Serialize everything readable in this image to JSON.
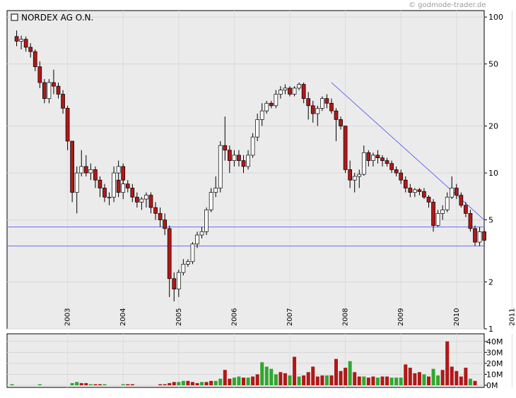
{
  "credit": "© godmode-trader.de",
  "chart_data": [
    {
      "type": "candlestick",
      "title": "NORDEX AG O.N.",
      "yscale": "log",
      "ylim": [
        1,
        110
      ],
      "yticks": [
        100,
        50,
        20,
        10,
        5,
        2,
        1
      ],
      "xrange": [
        "2002-02",
        "2011-12"
      ],
      "xticks": [
        "2003",
        "2004",
        "2005",
        "2006",
        "2007",
        "2008",
        "2009",
        "2010",
        "2011"
      ],
      "horizontal_lines": [
        4.5,
        3.4
      ],
      "trendline": {
        "from": [
          "2007-11",
          38
        ],
        "to": [
          "2011-12",
          5.0
        ]
      },
      "candles": [
        [
          "2002-03",
          75,
          82,
          65,
          70
        ],
        [
          "2002-04",
          70,
          76,
          62,
          72
        ],
        [
          "2002-05",
          72,
          75,
          60,
          64
        ],
        [
          "2002-06",
          64,
          68,
          55,
          60
        ],
        [
          "2002-07",
          60,
          62,
          45,
          48
        ],
        [
          "2002-08",
          48,
          52,
          35,
          38
        ],
        [
          "2002-09",
          38,
          40,
          28,
          30
        ],
        [
          "2002-10",
          30,
          40,
          28,
          38
        ],
        [
          "2002-11",
          38,
          46,
          32,
          36
        ],
        [
          "2002-12",
          36,
          38,
          30,
          32
        ],
        [
          "2003-01",
          32,
          34,
          24,
          26
        ],
        [
          "2003-02",
          26,
          27,
          14,
          16
        ],
        [
          "2003-03",
          16,
          16,
          6.5,
          7.5
        ],
        [
          "2003-04",
          7.5,
          11,
          5.5,
          10
        ],
        [
          "2003-05",
          10,
          14,
          9.5,
          11
        ],
        [
          "2003-06",
          11,
          13,
          9.5,
          10
        ],
        [
          "2003-07",
          10,
          11.5,
          9,
          10.5
        ],
        [
          "2003-08",
          10.5,
          11,
          8,
          9
        ],
        [
          "2003-09",
          9,
          9.5,
          7,
          8
        ],
        [
          "2003-10",
          8,
          8.5,
          6.5,
          7
        ],
        [
          "2003-11",
          7,
          7.5,
          6.2,
          7
        ],
        [
          "2003-12",
          7,
          11,
          6.5,
          10
        ],
        [
          "2003-13",
          10,
          12,
          9.5,
          11
        ],
        [
          "2003-14",
          11,
          11.5,
          8,
          9
        ],
        [
          "2004-01",
          9,
          9.5,
          7,
          7.5
        ],
        [
          "2004-02",
          7.5,
          9,
          6.8,
          8.5
        ],
        [
          "2004-03",
          8.5,
          9,
          7.5,
          8
        ],
        [
          "2004-04",
          8,
          8.5,
          6.5,
          7
        ],
        [
          "2004-05",
          7,
          7.5,
          6,
          6.5
        ],
        [
          "2004-06",
          6.5,
          7,
          5.8,
          6.8
        ],
        [
          "2004-07",
          6.8,
          7.5,
          6,
          7.2
        ],
        [
          "2004-08",
          7.2,
          7.5,
          5.5,
          6
        ],
        [
          "2004-09",
          6,
          6.5,
          5,
          5.5
        ],
        [
          "2004-10",
          5.5,
          6,
          4.5,
          5
        ],
        [
          "2004-11",
          5,
          5.5,
          4,
          4.4
        ],
        [
          "2004-12",
          4.4,
          4.6,
          1.6,
          2.1
        ],
        [
          "2005-01",
          2.1,
          2.3,
          1.5,
          1.8
        ],
        [
          "2005-02",
          1.8,
          2.4,
          1.6,
          2.3
        ],
        [
          "2005-03",
          2.3,
          2.8,
          2.2,
          2.6
        ],
        [
          "2005-04",
          2.6,
          2.8,
          2.5,
          2.7
        ],
        [
          "2005-05",
          2.7,
          3.6,
          2.6,
          3.5
        ],
        [
          "2005-06",
          3.5,
          4.2,
          3.3,
          4.0
        ],
        [
          "2005-07",
          4.0,
          4.5,
          3.8,
          4.2
        ],
        [
          "2005-08",
          4.2,
          6,
          4.0,
          5.8
        ],
        [
          "2005-09",
          5.8,
          8,
          5.6,
          7.5
        ],
        [
          "2005-10",
          7.5,
          9.5,
          7,
          8
        ],
        [
          "2005-11",
          8,
          16,
          7.5,
          15
        ],
        [
          "2005-12",
          15,
          23,
          12,
          14
        ],
        [
          "2006-01",
          14,
          15,
          10,
          12
        ],
        [
          "2006-02",
          12,
          14,
          11,
          13
        ],
        [
          "2006-03",
          13,
          14,
          11,
          12
        ],
        [
          "2006-04",
          12,
          13,
          10,
          11
        ],
        [
          "2006-05",
          11,
          14,
          10.5,
          13
        ],
        [
          "2006-06",
          13,
          18,
          12.5,
          17
        ],
        [
          "2006-07",
          17,
          24,
          16,
          22
        ],
        [
          "2006-08",
          22,
          28,
          20,
          25
        ],
        [
          "2006-09",
          25,
          29,
          24,
          28
        ],
        [
          "2006-10",
          28,
          29,
          26,
          27
        ],
        [
          "2006-11",
          27,
          34,
          26,
          32
        ],
        [
          "2006-12",
          32,
          36,
          30,
          34
        ],
        [
          "2007-01",
          34,
          37,
          32,
          35
        ],
        [
          "2007-02",
          35,
          36,
          31,
          32
        ],
        [
          "2007-03",
          32,
          36,
          31,
          35
        ],
        [
          "2007-04",
          35,
          38,
          34,
          37
        ],
        [
          "2007-05",
          37,
          38,
          28,
          30
        ],
        [
          "2007-06",
          30,
          33,
          22,
          27
        ],
        [
          "2007-07",
          27,
          29,
          21,
          24
        ],
        [
          "2007-08",
          24,
          27,
          20,
          26
        ],
        [
          "2007-09",
          26,
          31,
          25,
          30
        ],
        [
          "2007-10",
          30,
          32,
          26,
          28
        ],
        [
          "2007-11",
          28,
          30,
          24,
          25
        ],
        [
          "2007-12",
          25,
          26,
          16,
          22
        ],
        [
          "2008-01",
          22,
          23,
          19,
          20
        ],
        [
          "2008-02",
          20,
          20,
          10,
          10.5
        ],
        [
          "2008-03",
          10.5,
          12,
          8,
          9
        ],
        [
          "2008-04",
          9,
          10,
          7.5,
          9.5
        ],
        [
          "2008-05",
          9.5,
          10.5,
          8,
          9.8
        ],
        [
          "2008-06",
          9.8,
          15,
          9.6,
          13.5
        ],
        [
          "2008-07",
          13.5,
          14,
          11,
          12
        ],
        [
          "2008-08",
          12,
          13.5,
          11,
          13
        ],
        [
          "2008-09",
          13,
          14,
          11.5,
          12.5
        ],
        [
          "2008-10",
          12.5,
          13,
          11,
          12
        ],
        [
          "2008-11",
          12,
          12.5,
          11,
          11.5
        ],
        [
          "2008-12",
          11.5,
          12,
          10,
          10.5
        ],
        [
          "2009-01",
          10.5,
          11,
          9.5,
          10
        ],
        [
          "2009-02",
          10,
          10.5,
          8.5,
          9
        ],
        [
          "2009-03",
          9,
          9.5,
          7.5,
          8
        ],
        [
          "2009-04",
          8,
          8.5,
          7,
          7.5
        ],
        [
          "2009-05",
          7.5,
          8,
          7,
          7.8
        ],
        [
          "2009-06",
          7.8,
          8,
          7.2,
          7.6
        ],
        [
          "2009-07",
          7.6,
          8,
          6.8,
          7
        ],
        [
          "2009-08",
          7,
          7.2,
          6,
          6.5
        ],
        [
          "2009-09",
          6.5,
          6.8,
          4.2,
          4.6
        ],
        [
          "2009-10",
          4.6,
          5.8,
          4.5,
          5.5
        ],
        [
          "2009-11",
          5.5,
          6.2,
          5,
          5.8
        ],
        [
          "2009-12",
          5.8,
          7.5,
          5.6,
          7
        ],
        [
          "2010-01",
          7,
          9.5,
          6.8,
          8
        ],
        [
          "2010-02",
          8,
          8.5,
          6.8,
          7.2
        ],
        [
          "2010-03",
          7.2,
          7.5,
          6,
          6.2
        ],
        [
          "2010-04",
          6.2,
          6.5,
          5.2,
          5.5
        ],
        [
          "2010-05",
          5.5,
          5.8,
          4.2,
          4.4
        ],
        [
          "2010-06",
          4.4,
          4.6,
          3.4,
          3.6
        ],
        [
          "2010-07",
          3.6,
          4.5,
          3.4,
          4.2
        ],
        [
          "2010-08",
          4.2,
          4.4,
          3.4,
          3.7
        ]
      ],
      "volume": {
        "yticks": [
          "40M",
          "30M",
          "20M",
          "10M",
          "0M"
        ],
        "ylim": [
          0,
          45
        ],
        "bars": [
          [
            1,
            1
          ],
          [
            0,
            0
          ],
          [
            0,
            0
          ],
          [
            0,
            0
          ],
          [
            0,
            0
          ],
          [
            0,
            0
          ],
          [
            1,
            1
          ],
          [
            0,
            0
          ],
          [
            0,
            0
          ],
          [
            0,
            0
          ],
          [
            0,
            0
          ],
          [
            0,
            0
          ],
          [
            0,
            0
          ],
          [
            1,
            2
          ],
          [
            1,
            3
          ],
          [
            0,
            2
          ],
          [
            0,
            2
          ],
          [
            1,
            1
          ],
          [
            0,
            1
          ],
          [
            0,
            1
          ],
          [
            1,
            1
          ],
          [
            0,
            0
          ],
          [
            0,
            0
          ],
          [
            0,
            0
          ],
          [
            1,
            1
          ],
          [
            0,
            1
          ],
          [
            0,
            1
          ],
          [
            0,
            0
          ],
          [
            0,
            0
          ],
          [
            0,
            0
          ],
          [
            0,
            0
          ],
          [
            0,
            0
          ],
          [
            0,
            1
          ],
          [
            0,
            1
          ],
          [
            0,
            2
          ],
          [
            0,
            3
          ],
          [
            1,
            3
          ],
          [
            1,
            4
          ],
          [
            0,
            4
          ],
          [
            0,
            3
          ],
          [
            0,
            2
          ],
          [
            1,
            3
          ],
          [
            0,
            3
          ],
          [
            0,
            4
          ],
          [
            1,
            4
          ],
          [
            1,
            6
          ],
          [
            0,
            14
          ],
          [
            0,
            6
          ],
          [
            1,
            7
          ],
          [
            1,
            8
          ],
          [
            0,
            7
          ],
          [
            1,
            7
          ],
          [
            0,
            8
          ],
          [
            0,
            10
          ],
          [
            1,
            21
          ],
          [
            1,
            17
          ],
          [
            1,
            15
          ],
          [
            1,
            10
          ],
          [
            0,
            12
          ],
          [
            0,
            11
          ],
          [
            1,
            9
          ],
          [
            0,
            26
          ],
          [
            1,
            8
          ],
          [
            0,
            9
          ],
          [
            0,
            12
          ],
          [
            0,
            17
          ],
          [
            0,
            8
          ],
          [
            0,
            9
          ],
          [
            1,
            9
          ],
          [
            0,
            9
          ],
          [
            0,
            24
          ],
          [
            0,
            13
          ],
          [
            0,
            16
          ],
          [
            1,
            22
          ],
          [
            0,
            12
          ],
          [
            0,
            8
          ],
          [
            1,
            8
          ],
          [
            0,
            7
          ],
          [
            0,
            8
          ],
          [
            1,
            7
          ],
          [
            0,
            8
          ],
          [
            0,
            8
          ],
          [
            1,
            7
          ],
          [
            1,
            7
          ],
          [
            1,
            7
          ],
          [
            0,
            19
          ],
          [
            0,
            16
          ],
          [
            0,
            11
          ],
          [
            0,
            12
          ],
          [
            1,
            10
          ],
          [
            0,
            8
          ],
          [
            1,
            15
          ],
          [
            1,
            9
          ],
          [
            0,
            14
          ],
          [
            0,
            40
          ],
          [
            0,
            17
          ],
          [
            0,
            13
          ],
          [
            0,
            8
          ],
          [
            0,
            16
          ],
          [
            1,
            6
          ],
          [
            0,
            4
          ]
        ]
      }
    }
  ]
}
